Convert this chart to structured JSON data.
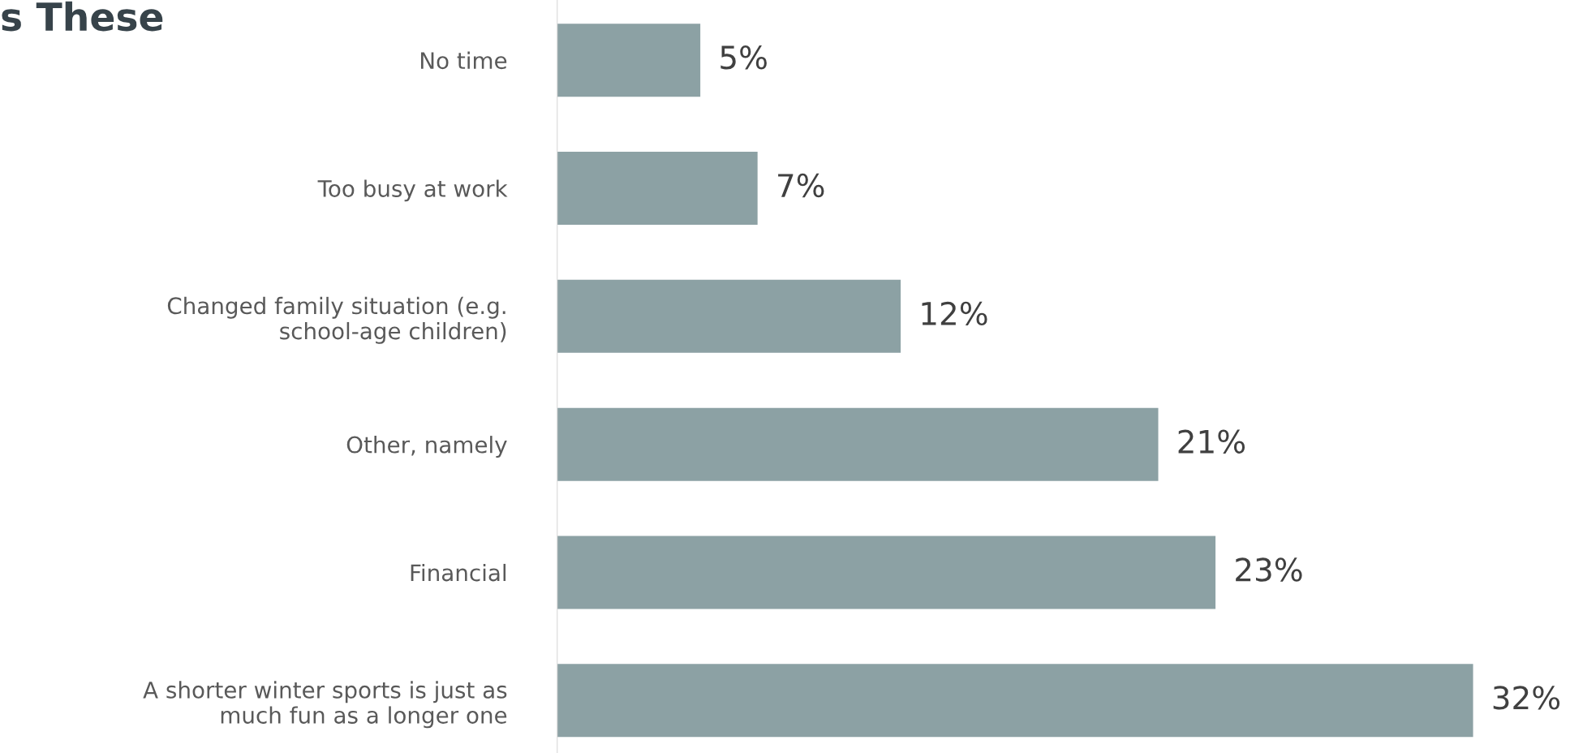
{
  "chart_data": {
    "type": "bar",
    "orientation": "horizontal",
    "title": "s These",
    "categories": [
      "No time",
      "Too busy at work",
      "Changed family situation (e.g.\nschool-age children)",
      "Other, namely",
      "Financial",
      "A shorter winter sports is just as\nmuch fun as a longer one"
    ],
    "values": [
      5,
      7,
      12,
      21,
      23,
      32
    ],
    "color": "#8ca1a4",
    "value_labels": [
      "5%",
      "7%",
      "12%",
      "21%",
      "23%",
      "32%"
    ],
    "grid": false,
    "legend": false
  }
}
